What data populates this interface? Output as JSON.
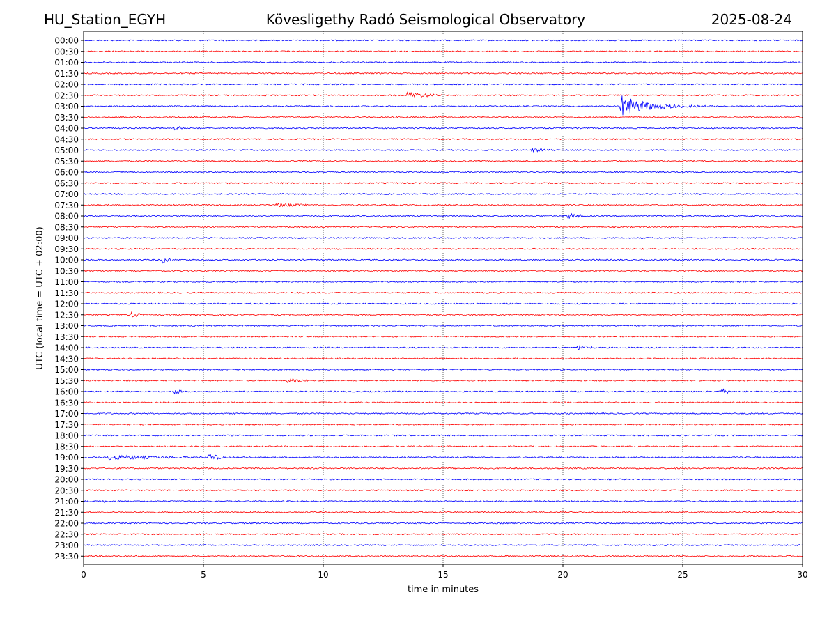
{
  "header": {
    "left": "HU_Station_EGYH",
    "center": "Kövesligethy Radó Seismological Observatory",
    "right": "2025-08-24"
  },
  "chart_data": {
    "type": "line",
    "title": "Kövesligethy Radó Seismological Observatory",
    "xlabel": "time in minutes",
    "ylabel": "UTC (local time = UTC + 02:00)",
    "xlim": [
      0,
      30
    ],
    "x_ticks": [
      0,
      5,
      10,
      15,
      20,
      25,
      30
    ],
    "x_tick_labels": [
      "0",
      "5",
      "10",
      "15",
      "20",
      "25",
      "30"
    ],
    "vertical_grid": true,
    "grid_style": "dotted",
    "row_labels": [
      "00:00",
      "00:30",
      "01:00",
      "01:30",
      "02:00",
      "02:30",
      "03:00",
      "03:30",
      "04:00",
      "04:30",
      "05:00",
      "05:30",
      "06:00",
      "06:30",
      "07:00",
      "07:30",
      "08:00",
      "08:30",
      "09:00",
      "09:30",
      "10:00",
      "10:30",
      "11:00",
      "11:30",
      "12:00",
      "12:30",
      "13:00",
      "13:30",
      "14:00",
      "14:30",
      "15:00",
      "15:30",
      "16:00",
      "16:30",
      "17:00",
      "17:30",
      "18:00",
      "18:30",
      "19:00",
      "19:30",
      "20:00",
      "20:30",
      "21:00",
      "21:30",
      "22:00",
      "22:30",
      "23:00",
      "23:30"
    ],
    "colors": [
      "#0000ff",
      "#ff0000"
    ],
    "events": [
      {
        "row": "02:30",
        "minute": 13.5,
        "amplitude": 0.5,
        "duration": 1.5
      },
      {
        "row": "03:00",
        "minute": 22.4,
        "amplitude": 2.2,
        "duration": 4.0
      },
      {
        "row": "04:00",
        "minute": 3.8,
        "amplitude": 0.6,
        "duration": 0.4
      },
      {
        "row": "05:00",
        "minute": 18.7,
        "amplitude": 0.3,
        "duration": 1.0
      },
      {
        "row": "07:30",
        "minute": 8.0,
        "amplitude": 0.3,
        "duration": 1.5
      },
      {
        "row": "08:00",
        "minute": 20.2,
        "amplitude": 0.5,
        "duration": 0.8
      },
      {
        "row": "10:00",
        "minute": 3.3,
        "amplitude": 0.6,
        "duration": 0.5
      },
      {
        "row": "12:30",
        "minute": 2.0,
        "amplitude": 0.5,
        "duration": 0.5
      },
      {
        "row": "14:00",
        "minute": 20.6,
        "amplitude": 0.5,
        "duration": 0.8
      },
      {
        "row": "15:30",
        "minute": 8.5,
        "amplitude": 0.4,
        "duration": 1.0
      },
      {
        "row": "16:00",
        "minute": 3.7,
        "amplitude": 0.6,
        "duration": 0.5
      },
      {
        "row": "16:00",
        "minute": 26.5,
        "amplitude": 0.5,
        "duration": 0.8
      },
      {
        "row": "19:00",
        "minute": 1.0,
        "amplitude": 0.5,
        "duration": 6.0
      },
      {
        "row": "19:00",
        "minute": 5.2,
        "amplitude": 0.6,
        "duration": 0.7
      },
      {
        "row": "21:00",
        "minute": 0.7,
        "amplitude": 0.4,
        "duration": 0.3
      }
    ]
  }
}
